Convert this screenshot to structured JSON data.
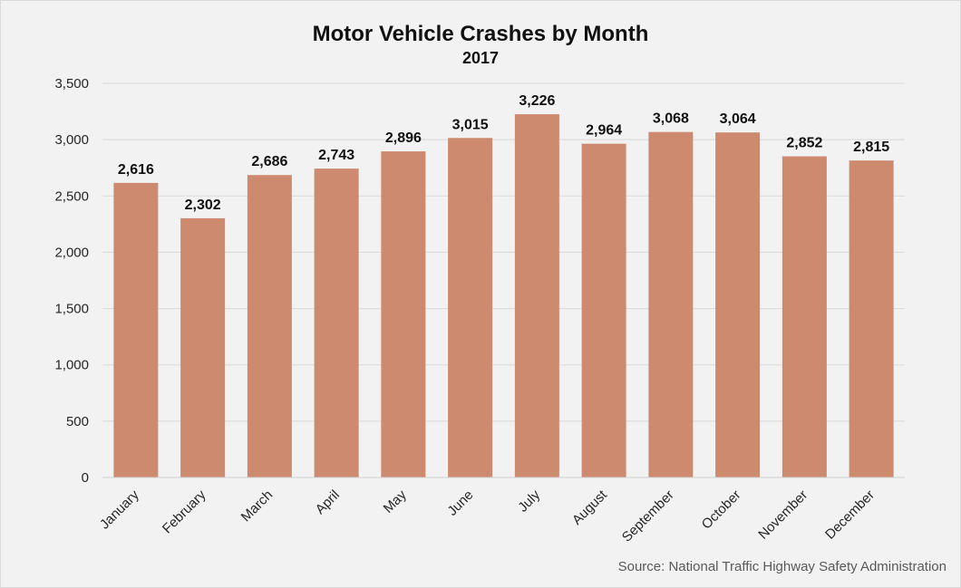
{
  "chart_data": {
    "type": "bar",
    "title": "Motor Vehicle Crashes by Month",
    "subtitle": "2017",
    "categories": [
      "January",
      "February",
      "March",
      "April",
      "May",
      "June",
      "July",
      "August",
      "September",
      "October",
      "November",
      "December"
    ],
    "values": [
      2616,
      2302,
      2686,
      2743,
      2896,
      3015,
      3226,
      2964,
      3068,
      3064,
      2852,
      2815
    ],
    "data_labels": [
      "2,616",
      "2,302",
      "2,686",
      "2,743",
      "2,896",
      "3,015",
      "3,226",
      "2,964",
      "3,068",
      "3,064",
      "2,852",
      "2,815"
    ],
    "yticks": [
      0,
      500,
      1000,
      1500,
      2000,
      2500,
      3000,
      3500
    ],
    "ytick_labels": [
      "0",
      "500",
      "1,000",
      "1,500",
      "2,000",
      "2,500",
      "3,000",
      "3,500"
    ],
    "ylim": [
      0,
      3500
    ],
    "grid": true,
    "bar_color": "#cd8a6e",
    "xlabel": "",
    "ylabel": ""
  },
  "source": "Source: National Traffic Highway Safety Administration"
}
